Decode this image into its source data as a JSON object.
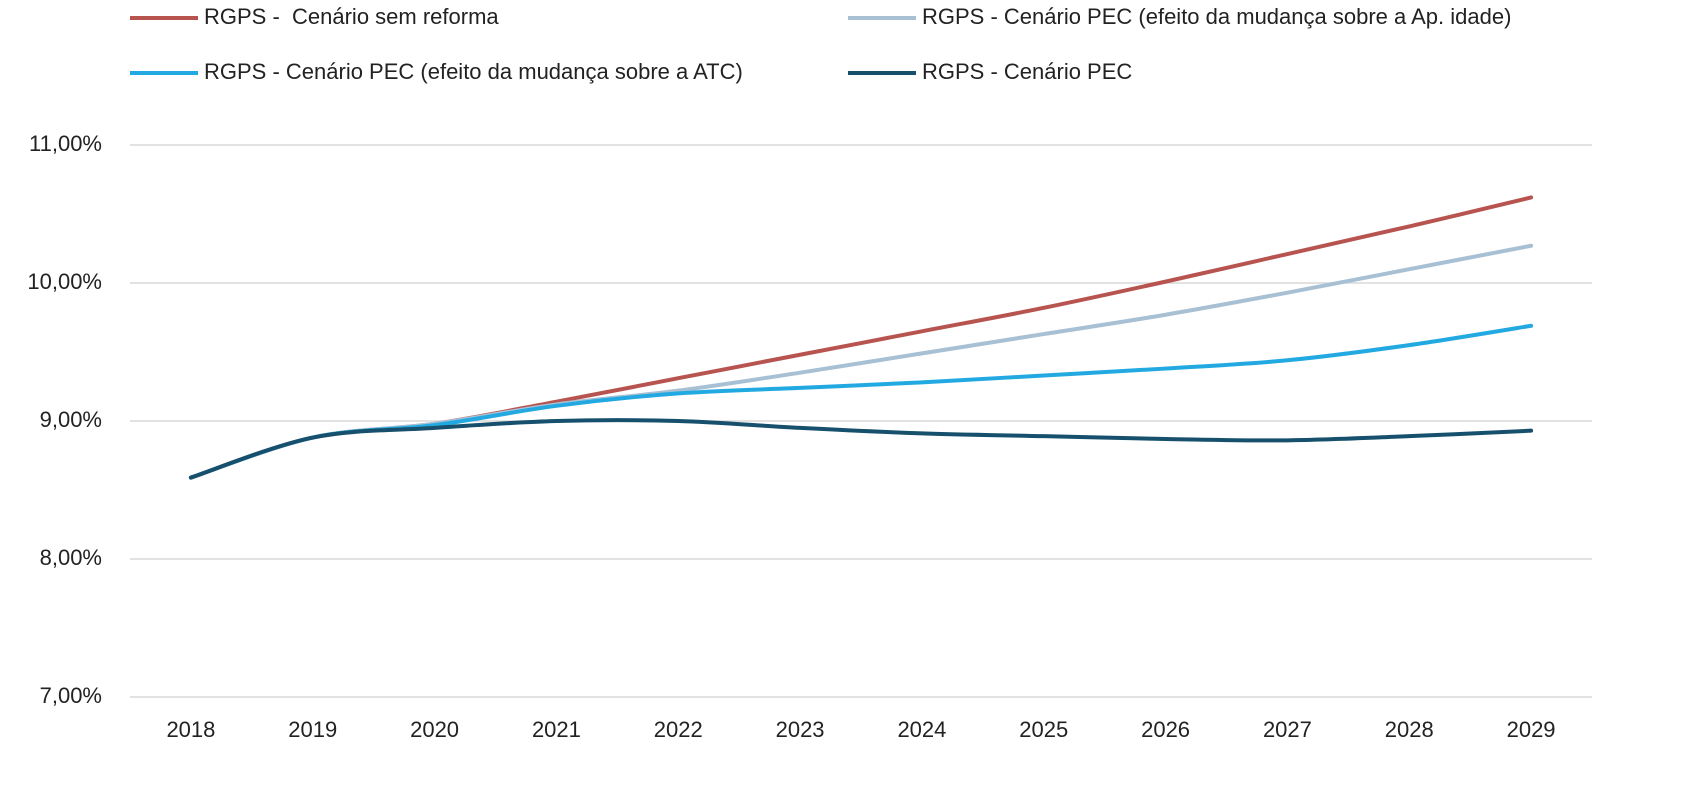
{
  "chart_data": {
    "type": "line",
    "categories": [
      "2018",
      "2019",
      "2020",
      "2021",
      "2022",
      "2023",
      "2024",
      "2025",
      "2026",
      "2027",
      "2028",
      "2029"
    ],
    "series": [
      {
        "name": "RGPS -  Cenário sem reforma",
        "color": "#b85450",
        "values": [
          8.59,
          8.88,
          8.98,
          9.14,
          9.31,
          9.48,
          9.65,
          9.82,
          10.01,
          10.21,
          10.41,
          10.62
        ]
      },
      {
        "name": "RGPS - Cenário PEC (efeito da mudança sobre a Ap. idade)",
        "color": "#a8c0d4",
        "values": [
          8.59,
          8.88,
          8.98,
          9.12,
          9.22,
          9.35,
          9.49,
          9.63,
          9.77,
          9.93,
          10.1,
          10.27
        ]
      },
      {
        "name": "RGPS - Cenário PEC (efeito da mudança sobre a ATC)",
        "color": "#23a9e1",
        "values": [
          8.59,
          8.88,
          8.97,
          9.11,
          9.2,
          9.24,
          9.28,
          9.33,
          9.38,
          9.44,
          9.55,
          9.69
        ]
      },
      {
        "name": "RGPS - Cenário PEC",
        "color": "#17506c",
        "values": [
          8.59,
          8.88,
          8.95,
          9.0,
          9.0,
          8.95,
          8.91,
          8.89,
          8.87,
          8.86,
          8.89,
          8.93
        ]
      }
    ],
    "ylim": [
      7,
      11
    ],
    "yticks": [
      {
        "value": 7,
        "label": "7,00%"
      },
      {
        "value": 8,
        "label": "8,00%"
      },
      {
        "value": 9,
        "label": "9,00%"
      },
      {
        "value": 10,
        "label": "10,00%"
      },
      {
        "value": 11,
        "label": "11,00%"
      }
    ],
    "grid": true,
    "legend": "top"
  }
}
